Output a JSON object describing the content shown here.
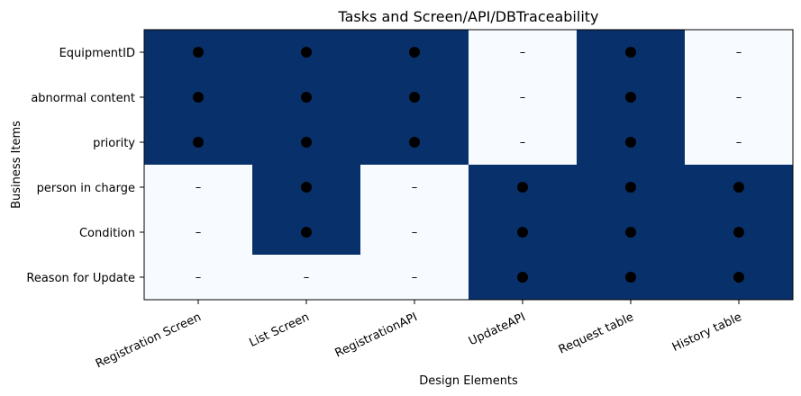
{
  "chart_data": {
    "type": "heatmap",
    "title": "Tasks and Screen/API/DBTraceability",
    "xlabel": "Design Elements",
    "ylabel": "Business Items",
    "x_categories": [
      "Registration Screen",
      "List Screen",
      "RegistrationAPI",
      "UpdateAPI",
      "Request table",
      "History table"
    ],
    "y_categories": [
      "EquipmentID",
      "abnormal content",
      "priority",
      "person in charge",
      "Condition",
      "Reason for Update"
    ],
    "values": [
      [
        1,
        1,
        1,
        0,
        1,
        0
      ],
      [
        1,
        1,
        1,
        0,
        1,
        0
      ],
      [
        1,
        1,
        1,
        0,
        1,
        0
      ],
      [
        0,
        1,
        0,
        1,
        1,
        1
      ],
      [
        0,
        1,
        0,
        1,
        1,
        1
      ],
      [
        0,
        0,
        0,
        1,
        1,
        1
      ]
    ],
    "marker_true": "●",
    "marker_false": "–",
    "colors": {
      "true": "#08306b",
      "false": "#f7fbff"
    },
    "grid": false,
    "legend": "none"
  }
}
